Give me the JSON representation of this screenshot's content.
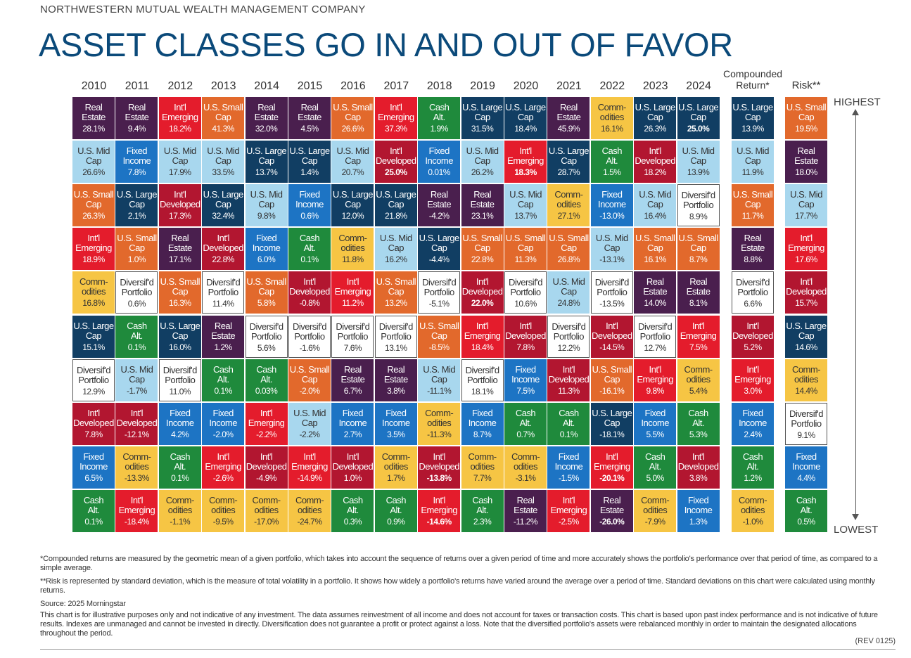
{
  "header": {
    "company": "NORTHWESTERN MUTUAL WEALTH MANAGEMENT COMPANY",
    "title": "ASSET CLASSES GO IN AND OUT OF FAVOR"
  },
  "colors": {
    "Real Estate": "#4a1f4e",
    "Int'l Emerging": "#e41c2c",
    "U.S. Small Cap": "#e2692c",
    "Cash Alt.": "#1f8a3c",
    "U.S. Large Cap": "#113e63",
    "Comm- odities": "#f6c544",
    "U.S. Mid Cap": "#a8d7ee",
    "Fixed Income": "#1d74c4",
    "Int'l Developed": "#b21630",
    "Diversif'd Portfolio": "#ffffff"
  },
  "text_colors": {
    "Real Estate": "#ffffff",
    "Int'l Emerging": "#ffffff",
    "U.S. Small Cap": "#ffffff",
    "Cash Alt.": "#ffffff",
    "U.S. Large Cap": "#ffffff",
    "Comm- odities": "#333333",
    "U.S. Mid Cap": "#333333",
    "Fixed Income": "#ffffff",
    "Int'l Developed": "#ffffff",
    "Diversif'd Portfolio": "#333333"
  },
  "chart_data": {
    "type": "table",
    "columns": [
      "2010",
      "2011",
      "2012",
      "2013",
      "2014",
      "2015",
      "2016",
      "2017",
      "2018",
      "2019",
      "2020",
      "2021",
      "2022",
      "2023",
      "2024"
    ],
    "summary_columns": [
      "Compounded Return*",
      "Risk**"
    ],
    "rank_labels": {
      "highest": "HIGHEST",
      "lowest": "LOWEST"
    },
    "years": [
      [
        [
          "Real Estate",
          "28.1%"
        ],
        [
          "U.S. Mid Cap",
          "26.6%"
        ],
        [
          "U.S. Small Cap",
          "26.3%"
        ],
        [
          "Int'l Emerging",
          "18.9%"
        ],
        [
          "Comm- odities",
          "16.8%"
        ],
        [
          "U.S. Large Cap",
          "15.1%"
        ],
        [
          "Diversif'd Portfolio",
          "12.9%"
        ],
        [
          "Int'l Developed",
          "7.8%"
        ],
        [
          "Fixed Income",
          "6.5%"
        ],
        [
          "Cash Alt.",
          "0.1%"
        ]
      ],
      [
        [
          "Real Estate",
          "9.4%"
        ],
        [
          "Fixed Income",
          "7.8%"
        ],
        [
          "U.S. Large Cap",
          "2.1%"
        ],
        [
          "U.S. Small Cap",
          "1.0%"
        ],
        [
          "Diversif'd Portfolio",
          "0.6%"
        ],
        [
          "Cash Alt.",
          "0.1%"
        ],
        [
          "U.S. Mid Cap",
          "-1.7%"
        ],
        [
          "Int'l Developed",
          "-12.1%"
        ],
        [
          "Comm- odities",
          "-13.3%"
        ],
        [
          "Int'l Emerging",
          "-18.4%"
        ]
      ],
      [
        [
          "Int'l Emerging",
          "18.2%"
        ],
        [
          "U.S. Mid Cap",
          "17.9%"
        ],
        [
          "Int'l Developed",
          "17.3%"
        ],
        [
          "Real Estate",
          "17.1%"
        ],
        [
          "U.S. Small Cap",
          "16.3%"
        ],
        [
          "U.S. Large Cap",
          "16.0%"
        ],
        [
          "Diversif'd Portfolio",
          "11.0%"
        ],
        [
          "Fixed Income",
          "4.2%"
        ],
        [
          "Cash Alt.",
          "0.1%"
        ],
        [
          "Comm- odities",
          "-1.1%"
        ]
      ],
      [
        [
          "U.S. Small Cap",
          "41.3%"
        ],
        [
          "U.S. Mid Cap",
          "33.5%"
        ],
        [
          "U.S. Large Cap",
          "32.4%"
        ],
        [
          "Int'l Developed",
          "22.8%"
        ],
        [
          "Diversif'd Portfolio",
          "11.4%"
        ],
        [
          "Real Estate",
          "1.2%"
        ],
        [
          "Cash Alt.",
          "0.1%"
        ],
        [
          "Fixed Income",
          "-2.0%"
        ],
        [
          "Int'l Emerging",
          "-2.6%"
        ],
        [
          "Comm- odities",
          "-9.5%"
        ]
      ],
      [
        [
          "Real Estate",
          "32.0%"
        ],
        [
          "U.S. Large Cap",
          "13.7%"
        ],
        [
          "U.S. Mid Cap",
          "9.8%"
        ],
        [
          "Fixed Income",
          "6.0%"
        ],
        [
          "U.S. Small Cap",
          "5.8%"
        ],
        [
          "Diversif'd Portfolio",
          "5.6%"
        ],
        [
          "Cash Alt.",
          "0.03%"
        ],
        [
          "Int'l Emerging",
          "-2.2%"
        ],
        [
          "Int'l Developed",
          "-4.9%"
        ],
        [
          "Comm- odities",
          "-17.0%"
        ]
      ],
      [
        [
          "Real Estate",
          "4.5%"
        ],
        [
          "U.S. Large Cap",
          "1.4%"
        ],
        [
          "Fixed Income",
          "0.6%"
        ],
        [
          "Cash Alt.",
          "0.1%"
        ],
        [
          "Int'l Developed",
          "-0.8%"
        ],
        [
          "Diversif'd Portfolio",
          "-1.6%"
        ],
        [
          "U.S. Small Cap",
          "-2.0%"
        ],
        [
          "U.S. Mid Cap",
          "-2.2%"
        ],
        [
          "Int'l Emerging",
          "-14.9%"
        ],
        [
          "Comm- odities",
          "-24.7%"
        ]
      ],
      [
        [
          "U.S. Small Cap",
          "26.6%"
        ],
        [
          "U.S. Mid Cap",
          "20.7%"
        ],
        [
          "U.S. Large Cap",
          "12.0%"
        ],
        [
          "Comm- odities",
          "11.8%"
        ],
        [
          "Int'l Emerging",
          "11.2%"
        ],
        [
          "Diversif'd Portfolio",
          "7.6%"
        ],
        [
          "Real Estate",
          "6.7%"
        ],
        [
          "Fixed Income",
          "2.7%"
        ],
        [
          "Int'l Developed",
          "1.0%"
        ],
        [
          "Cash Alt.",
          "0.3%"
        ]
      ],
      [
        [
          "Int'l Emerging",
          "37.3%"
        ],
        [
          "Int'l Developed",
          "25.0%"
        ],
        [
          "U.S. Large Cap",
          "21.8%"
        ],
        [
          "U.S. Mid Cap",
          "16.2%"
        ],
        [
          "U.S. Small Cap",
          "13.2%"
        ],
        [
          "Diversif'd Portfolio",
          "13.1%"
        ],
        [
          "Real Estate",
          "3.8%"
        ],
        [
          "Fixed Income",
          "3.5%"
        ],
        [
          "Comm- odities",
          "1.7%"
        ],
        [
          "Cash Alt.",
          "0.9%"
        ]
      ],
      [
        [
          "Cash Alt.",
          "1.9%"
        ],
        [
          "Fixed Income",
          "0.01%"
        ],
        [
          "Real Estate",
          "-4.2%"
        ],
        [
          "U.S. Large Cap",
          "-4.4%"
        ],
        [
          "Diversif'd Portfolio",
          "-5.1%"
        ],
        [
          "U.S. Small Cap",
          "-8.5%"
        ],
        [
          "U.S. Mid Cap",
          "-11.1%"
        ],
        [
          "Comm- odities",
          "-11.3%"
        ],
        [
          "Int'l Developed",
          "-13.8%"
        ],
        [
          "Int'l Emerging",
          "-14.6%"
        ]
      ],
      [
        [
          "U.S. Large Cap",
          "31.5%"
        ],
        [
          "U.S. Mid Cap",
          "26.2%"
        ],
        [
          "Real Estate",
          "23.1%"
        ],
        [
          "U.S. Small Cap",
          "22.8%"
        ],
        [
          "Int'l Developed",
          "22.0%"
        ],
        [
          "Int'l Emerging",
          "18.4%"
        ],
        [
          "Diversif'd Portfolio",
          "18.1%"
        ],
        [
          "Fixed Income",
          "8.7%"
        ],
        [
          "Comm- odities",
          "7.7%"
        ],
        [
          "Cash Alt.",
          "2.3%"
        ]
      ],
      [
        [
          "U.S. Large Cap",
          "18.4%"
        ],
        [
          "Int'l Emerging",
          "18.3%"
        ],
        [
          "U.S. Mid Cap",
          "13.7%"
        ],
        [
          "U.S. Small Cap",
          "11.3%"
        ],
        [
          "Diversif'd Portfolio",
          "10.6%"
        ],
        [
          "Int'l Developed",
          "7.8%"
        ],
        [
          "Fixed Income",
          "7.5%"
        ],
        [
          "Cash Alt.",
          "0.7%"
        ],
        [
          "Comm- odities",
          "-3.1%"
        ],
        [
          "Real Estate",
          "-11.2%"
        ]
      ],
      [
        [
          "Real Estate",
          "45.9%"
        ],
        [
          "U.S. Large Cap",
          "28.7%"
        ],
        [
          "Comm- odities",
          "27.1%"
        ],
        [
          "U.S. Small Cap",
          "26.8%"
        ],
        [
          "U.S. Mid Cap",
          "24.8%"
        ],
        [
          "Diversif'd Portfolio",
          "12.2%"
        ],
        [
          "Int'l Developed",
          "11.3%"
        ],
        [
          "Cash Alt.",
          "0.1%"
        ],
        [
          "Fixed Income",
          "-1.5%"
        ],
        [
          "Int'l Emerging",
          "-2.5%"
        ]
      ],
      [
        [
          "Comm- odities",
          "16.1%"
        ],
        [
          "Cash Alt.",
          "1.5%"
        ],
        [
          "Fixed Income",
          "-13.0%"
        ],
        [
          "U.S. Mid Cap",
          "-13.1%"
        ],
        [
          "Diversif'd Portfolio",
          "-13.5%"
        ],
        [
          "Int'l Developed",
          "-14.5%"
        ],
        [
          "U.S. Small Cap",
          "-16.1%"
        ],
        [
          "U.S. Large Cap",
          "-18.1%"
        ],
        [
          "Int'l Emerging",
          "-20.1%"
        ],
        [
          "Real Estate",
          "-26.0%"
        ]
      ],
      [
        [
          "U.S. Large Cap",
          "26.3%"
        ],
        [
          "Int'l Developed",
          "18.2%"
        ],
        [
          "U.S. Mid Cap",
          "16.4%"
        ],
        [
          "U.S. Small Cap",
          "16.1%"
        ],
        [
          "Real Estate",
          "14.0%"
        ],
        [
          "Diversif'd Portfolio",
          "12.7%"
        ],
        [
          "Int'l Emerging",
          "9.8%"
        ],
        [
          "Fixed Income",
          "5.5%"
        ],
        [
          "Cash Alt.",
          "5.0%"
        ],
        [
          "Comm- odities",
          "-7.9%"
        ]
      ],
      [
        [
          "U.S. Large Cap",
          "25.0%"
        ],
        [
          "U.S. Mid Cap",
          "13.9%"
        ],
        [
          "Diversif'd Portfolio",
          "8.9%"
        ],
        [
          "U.S. Small Cap",
          "8.7%"
        ],
        [
          "Real Estate",
          "8.1%"
        ],
        [
          "Int'l Emerging",
          "7.5%"
        ],
        [
          "Comm- odities",
          "5.4%"
        ],
        [
          "Cash Alt.",
          "5.3%"
        ],
        [
          "Int'l Developed",
          "3.8%"
        ],
        [
          "Fixed Income",
          "1.3%"
        ]
      ]
    ],
    "compounded": [
      [
        "U.S. Large Cap",
        "13.9%"
      ],
      [
        "U.S. Mid Cap",
        "11.9%"
      ],
      [
        "U.S. Small Cap",
        "11.7%"
      ],
      [
        "Real Estate",
        "8.8%"
      ],
      [
        "Diversif'd Portfolio",
        "6.6%"
      ],
      [
        "Int'l Developed",
        "5.2%"
      ],
      [
        "Int'l Emerging",
        "3.0%"
      ],
      [
        "Fixed Income",
        "2.4%"
      ],
      [
        "Cash Alt.",
        "1.2%"
      ],
      [
        "Comm- odities",
        "-1.0%"
      ]
    ],
    "risk": [
      [
        "U.S. Small Cap",
        "19.5%"
      ],
      [
        "Real Estate",
        "18.0%"
      ],
      [
        "U.S. Mid Cap",
        "17.7%"
      ],
      [
        "Int'l Emerging",
        "17.6%"
      ],
      [
        "Int'l Developed",
        "15.7%"
      ],
      [
        "U.S. Large Cap",
        "14.6%"
      ],
      [
        "Comm- odities",
        "14.4%"
      ],
      [
        "Diversif'd Portfolio",
        "9.1%"
      ],
      [
        "Fixed Income",
        "4.4%"
      ],
      [
        "Cash Alt.",
        "0.5%"
      ]
    ],
    "bold_values": [
      "25.0%",
      "22.0%",
      "18.3%",
      "-13.8%",
      "-14.6%",
      "-20.1%",
      "-26.0%"
    ]
  },
  "footnotes": {
    "compounded": "*Compounded returns are measured by the geometric mean of a given portfolio, which takes into account the sequence of returns over a given period of time and more accurately shows the portfolio's performance over that period of time, as compared to a simple average.",
    "risk": "**Risk is represented by standard deviation, which is the measure of total volatility in a portfolio. It shows how widely a portfolio's returns have varied around the average over a period of time. Standard deviations on this chart were calculated using monthly returns.",
    "source": "Source: 2025 Morningstar",
    "disclaimer": "This chart is for illustrative purposes only and not indicative of any investment. The data assumes reinvestment of all income and does not account for taxes or transaction costs. This chart is based upon past index performance and is not indicative of future results. Indexes are unmanaged and cannot be invested in directly. Diversification does not guarantee a profit or protect against a loss. Note that the diversified portfolio's assets were rebalanced monthly in order to maintain the designated allocations throughout the period.",
    "rev": "(REV 0125)"
  }
}
